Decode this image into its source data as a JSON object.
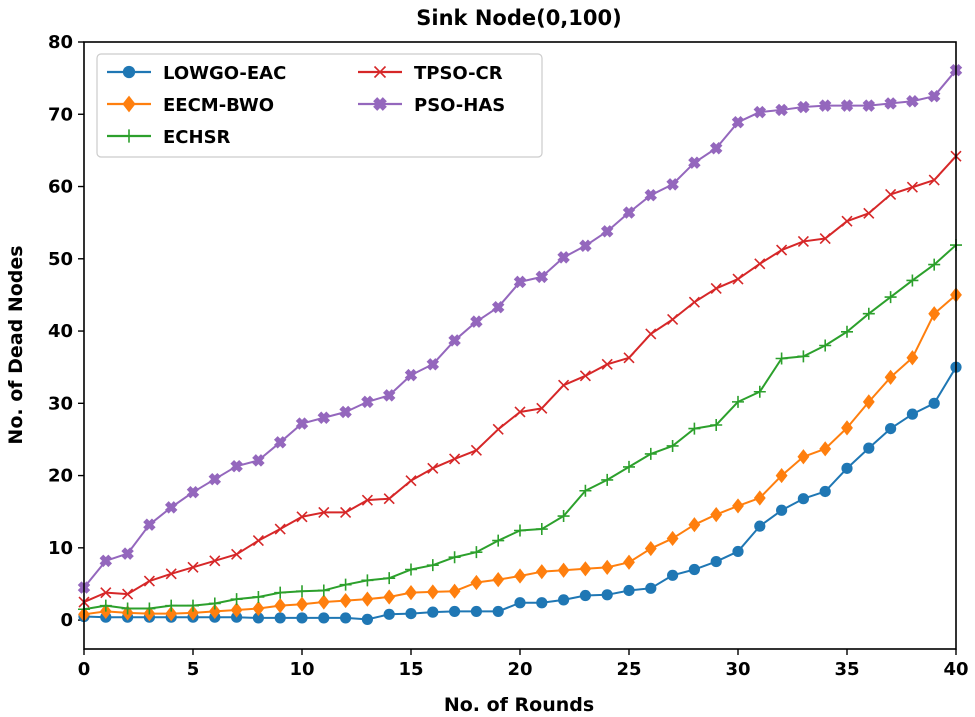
{
  "chart_data": {
    "type": "line",
    "title": "Sink Node(0,100)",
    "xlabel": "No. of Rounds",
    "ylabel": "No. of Dead Nodes",
    "xlim": [
      0,
      40
    ],
    "ylim": [
      -4,
      80
    ],
    "xticks": [
      0,
      5,
      10,
      15,
      20,
      25,
      30,
      35,
      40
    ],
    "yticks": [
      0,
      10,
      20,
      30,
      40,
      50,
      60,
      70,
      80
    ],
    "grid": false,
    "legend_position": "top-left",
    "x": [
      0,
      1,
      2,
      3,
      4,
      5,
      6,
      7,
      8,
      9,
      10,
      11,
      12,
      13,
      14,
      15,
      16,
      17,
      18,
      19,
      20,
      21,
      22,
      23,
      24,
      25,
      26,
      27,
      28,
      29,
      30,
      31,
      32,
      33,
      34,
      35,
      36,
      37,
      38,
      39,
      40
    ],
    "series": [
      {
        "name": "LOWGO-EAC",
        "color": "#1f77b4",
        "marker": "circle",
        "values": [
          0.5,
          0.4,
          0.4,
          0.4,
          0.4,
          0.4,
          0.4,
          0.4,
          0.3,
          0.3,
          0.3,
          0.3,
          0.3,
          0.1,
          0.8,
          0.9,
          1.1,
          1.2,
          1.2,
          1.2,
          2.4,
          2.4,
          2.8,
          3.4,
          3.5,
          4.1,
          4.4,
          6.2,
          7.0,
          8.1,
          9.5,
          13.0,
          15.2,
          16.8,
          17.8,
          21.0,
          23.8,
          26.5,
          28.5,
          30.0,
          35.0
        ]
      },
      {
        "name": "EECM-BWO",
        "color": "#ff7f0e",
        "marker": "diamond",
        "values": [
          0.8,
          1.2,
          1.0,
          0.9,
          0.9,
          1.0,
          1.2,
          1.4,
          1.6,
          2.0,
          2.2,
          2.5,
          2.7,
          2.9,
          3.2,
          3.8,
          3.9,
          4.0,
          5.2,
          5.6,
          6.1,
          6.7,
          6.9,
          7.1,
          7.3,
          8.0,
          9.9,
          11.3,
          13.2,
          14.6,
          15.8,
          16.9,
          20.0,
          22.6,
          23.7,
          26.6,
          30.2,
          33.6,
          36.3,
          42.4,
          45.0
        ]
      },
      {
        "name": "ECHSR",
        "color": "#2ca02c",
        "marker": "plus",
        "values": [
          1.5,
          2.0,
          1.6,
          1.6,
          2.0,
          2.0,
          2.3,
          2.9,
          3.2,
          3.8,
          4.0,
          4.1,
          4.9,
          5.5,
          5.8,
          7.0,
          7.6,
          8.7,
          9.4,
          11.0,
          12.4,
          12.6,
          14.4,
          17.9,
          19.4,
          21.2,
          23.0,
          24.1,
          26.5,
          27.0,
          30.2,
          31.6,
          36.2,
          36.5,
          38.0,
          39.9,
          42.4,
          44.7,
          47.0,
          49.2,
          51.9
        ]
      },
      {
        "name": "TPSO-CR",
        "color": "#d62728",
        "marker": "x",
        "values": [
          2.5,
          3.8,
          3.6,
          5.4,
          6.4,
          7.3,
          8.2,
          9.1,
          11.0,
          12.6,
          14.3,
          14.9,
          14.9,
          16.6,
          16.8,
          19.3,
          21.0,
          22.3,
          23.5,
          26.4,
          28.8,
          29.3,
          32.5,
          33.8,
          35.4,
          36.3,
          39.6,
          41.6,
          44.0,
          45.9,
          47.2,
          49.3,
          51.2,
          52.4,
          52.8,
          55.2,
          56.3,
          58.9,
          59.9,
          60.9,
          64.2
        ]
      },
      {
        "name": "PSO-HAS",
        "color": "#9467bd",
        "marker": "plusfilled",
        "values": [
          4.5,
          8.2,
          9.2,
          13.2,
          15.6,
          17.7,
          19.5,
          21.3,
          22.1,
          24.6,
          27.2,
          28.0,
          28.8,
          30.2,
          31.1,
          33.9,
          35.4,
          38.7,
          41.3,
          43.3,
          46.8,
          47.5,
          50.2,
          51.8,
          53.8,
          56.4,
          58.8,
          60.3,
          63.3,
          65.3,
          68.9,
          70.3,
          70.6,
          71.0,
          71.2,
          71.2,
          71.2,
          71.5,
          71.8,
          72.5,
          76.1
        ]
      }
    ]
  }
}
